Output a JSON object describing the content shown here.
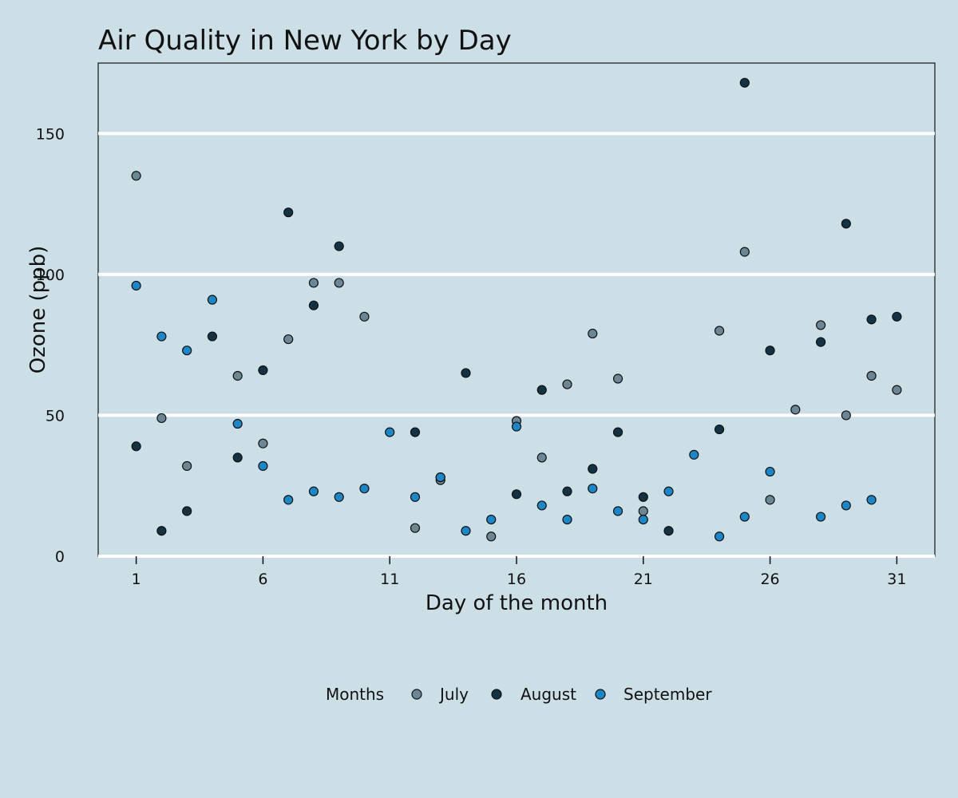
{
  "chart_data": {
    "type": "scatter",
    "title": "Air Quality in New York by Day",
    "xlabel": "Day of the month",
    "ylabel": "Ozone (ppb)",
    "xlim": [
      -0.5,
      32.5
    ],
    "ylim": [
      0,
      175
    ],
    "x_ticks": [
      1,
      6,
      11,
      16,
      21,
      26,
      31
    ],
    "y_ticks": [
      0,
      50,
      100,
      150
    ],
    "grid": "horizontal",
    "legend": {
      "title": "Months",
      "position": "bottom"
    },
    "series": [
      {
        "name": "July",
        "color": "#6b8795",
        "points": [
          [
            1,
            135
          ],
          [
            2,
            49
          ],
          [
            3,
            32
          ],
          [
            5,
            64
          ],
          [
            6,
            40
          ],
          [
            7,
            77
          ],
          [
            8,
            97
          ],
          [
            9,
            97
          ],
          [
            10,
            85
          ],
          [
            12,
            10
          ],
          [
            13,
            27
          ],
          [
            15,
            7
          ],
          [
            16,
            48
          ],
          [
            17,
            35
          ],
          [
            18,
            61
          ],
          [
            19,
            79
          ],
          [
            20,
            63
          ],
          [
            21,
            16
          ],
          [
            24,
            80
          ],
          [
            25,
            108
          ],
          [
            26,
            20
          ],
          [
            27,
            52
          ],
          [
            28,
            82
          ],
          [
            29,
            50
          ],
          [
            30,
            64
          ],
          [
            31,
            59
          ]
        ]
      },
      {
        "name": "August",
        "color": "#133244",
        "points": [
          [
            1,
            39
          ],
          [
            2,
            9
          ],
          [
            3,
            16
          ],
          [
            4,
            78
          ],
          [
            5,
            35
          ],
          [
            6,
            66
          ],
          [
            7,
            122
          ],
          [
            8,
            89
          ],
          [
            9,
            110
          ],
          [
            12,
            44
          ],
          [
            13,
            28
          ],
          [
            14,
            65
          ],
          [
            16,
            22
          ],
          [
            17,
            59
          ],
          [
            18,
            23
          ],
          [
            19,
            31
          ],
          [
            20,
            44
          ],
          [
            21,
            21
          ],
          [
            22,
            9
          ],
          [
            24,
            45
          ],
          [
            25,
            168
          ],
          [
            26,
            73
          ],
          [
            28,
            76
          ],
          [
            29,
            118
          ],
          [
            30,
            84
          ],
          [
            31,
            85
          ]
        ]
      },
      {
        "name": "September",
        "color": "#1d86c6",
        "points": [
          [
            1,
            96
          ],
          [
            2,
            78
          ],
          [
            3,
            73
          ],
          [
            4,
            91
          ],
          [
            5,
            47
          ],
          [
            6,
            32
          ],
          [
            7,
            20
          ],
          [
            8,
            23
          ],
          [
            9,
            21
          ],
          [
            10,
            24
          ],
          [
            11,
            44
          ],
          [
            12,
            21
          ],
          [
            13,
            28
          ],
          [
            14,
            9
          ],
          [
            15,
            13
          ],
          [
            16,
            46
          ],
          [
            17,
            18
          ],
          [
            18,
            13
          ],
          [
            19,
            24
          ],
          [
            20,
            16
          ],
          [
            21,
            13
          ],
          [
            22,
            23
          ],
          [
            23,
            36
          ],
          [
            24,
            7
          ],
          [
            25,
            14
          ],
          [
            26,
            30
          ],
          [
            28,
            14
          ],
          [
            29,
            18
          ],
          [
            30,
            20
          ]
        ]
      }
    ]
  }
}
